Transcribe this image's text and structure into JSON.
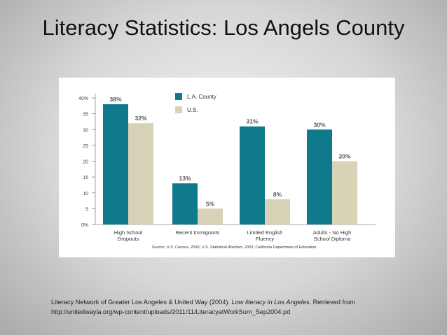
{
  "slide": {
    "title": "Literacy Statistics: Los Angels County"
  },
  "chart_data": {
    "type": "bar",
    "categories": [
      [
        "High School",
        "Dropouts"
      ],
      [
        "Recent Immigrants"
      ],
      [
        "Limited English",
        "Fluency"
      ],
      [
        "Adults - No High",
        "School Diploma"
      ]
    ],
    "series": [
      {
        "name": "L.A. County",
        "values": [
          38,
          13,
          31,
          30
        ],
        "labels": [
          "38%",
          "13%",
          "31%",
          "30%"
        ],
        "color": "#0f7a8c"
      },
      {
        "name": "U.S.",
        "values": [
          32,
          5,
          8,
          20
        ],
        "labels": [
          "32%",
          "5%",
          "8%",
          "20%"
        ],
        "color": "#d8d2b6"
      }
    ],
    "yticks": [
      {
        "value": 0,
        "label": "0%"
      },
      {
        "value": 5,
        "label": "5"
      },
      {
        "value": 10,
        "label": "10"
      },
      {
        "value": 15,
        "label": "15"
      },
      {
        "value": 20,
        "label": "20"
      },
      {
        "value": 25,
        "label": "25"
      },
      {
        "value": 30,
        "label": "30"
      },
      {
        "value": 35,
        "label": "35"
      },
      {
        "value": 40,
        "label": "40%"
      }
    ],
    "ylim": [
      0,
      40
    ],
    "grid": false,
    "legend": "top-center",
    "source": "Source: U.S. Census, 2000; U.S. Statistical Abstract, 2003; California Department of Education"
  },
  "citation": {
    "text_before": "Literacy Network of Greater Los Angeles & United Way (2004). ",
    "text_italic": "Low literacy in Los Angeles.",
    "text_after": "  Retrieved from",
    "line2": "http://unitedwayla.org/wp-content/uploads/2011/11/LiteracyatWorkSum_Sep2004.pd"
  }
}
